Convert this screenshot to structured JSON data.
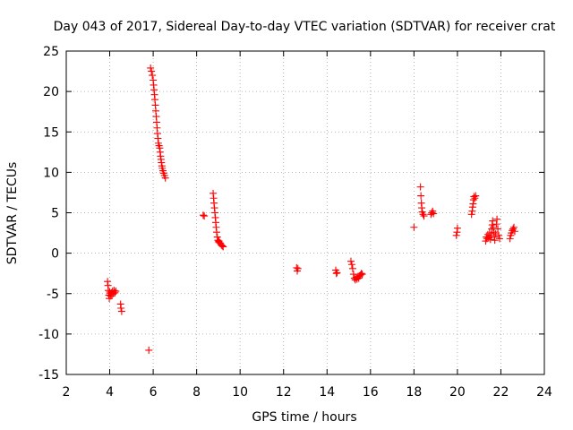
{
  "chart_data": {
    "type": "scatter",
    "title": "Day 043 of 2017, Sidereal Day-to-day VTEC variation (SDTVAR) for receiver crat",
    "xlabel": "GPS time / hours",
    "ylabel": "SDTVAR / TECUs",
    "xlim": [
      2,
      24
    ],
    "ylim": [
      -15,
      25
    ],
    "xticks": [
      "2",
      "4",
      "6",
      "8",
      "10",
      "12",
      "14",
      "16",
      "18",
      "20",
      "22",
      "24"
    ],
    "yticks": [
      "25",
      "20",
      "15",
      "10",
      "5",
      "0",
      "-5",
      "-10",
      "-15"
    ],
    "grid": true,
    "marker": "plus",
    "series": [
      {
        "name": "SDTVAR",
        "color": "#ff0000",
        "points": [
          [
            3.9,
            -3.5
          ],
          [
            3.92,
            -4.0
          ],
          [
            3.94,
            -4.6
          ],
          [
            3.96,
            -5.2
          ],
          [
            3.98,
            -5.6
          ],
          [
            4.0,
            -4.8
          ],
          [
            4.02,
            -5.0
          ],
          [
            4.05,
            -5.3
          ],
          [
            4.08,
            -4.9
          ],
          [
            4.1,
            -5.1
          ],
          [
            4.13,
            -4.7
          ],
          [
            4.16,
            -5.0
          ],
          [
            4.2,
            -4.6
          ],
          [
            4.24,
            -4.9
          ],
          [
            4.28,
            -4.7
          ],
          [
            4.5,
            -6.3
          ],
          [
            4.52,
            -6.8
          ],
          [
            4.55,
            -7.2
          ],
          [
            5.8,
            -12.0
          ],
          [
            5.88,
            22.9
          ],
          [
            5.92,
            22.5
          ],
          [
            5.96,
            22.0
          ],
          [
            6.0,
            21.4
          ],
          [
            6.02,
            20.8
          ],
          [
            6.04,
            20.2
          ],
          [
            6.06,
            19.6
          ],
          [
            6.08,
            19.0
          ],
          [
            6.1,
            18.3
          ],
          [
            6.12,
            17.6
          ],
          [
            6.14,
            16.9
          ],
          [
            6.16,
            16.2
          ],
          [
            6.18,
            15.5
          ],
          [
            6.2,
            14.8
          ],
          [
            6.22,
            14.2
          ],
          [
            6.24,
            13.6
          ],
          [
            6.27,
            13.3
          ],
          [
            6.3,
            13.0
          ],
          [
            6.32,
            12.5
          ],
          [
            6.34,
            12.0
          ],
          [
            6.36,
            11.6
          ],
          [
            6.38,
            11.2
          ],
          [
            6.4,
            10.8
          ],
          [
            6.42,
            10.5
          ],
          [
            6.45,
            10.2
          ],
          [
            6.48,
            9.9
          ],
          [
            6.52,
            9.6
          ],
          [
            6.56,
            9.3
          ],
          [
            8.3,
            4.7
          ],
          [
            8.35,
            4.6
          ],
          [
            8.76,
            7.4
          ],
          [
            8.78,
            6.8
          ],
          [
            8.8,
            6.2
          ],
          [
            8.82,
            5.6
          ],
          [
            8.84,
            5.0
          ],
          [
            8.86,
            4.4
          ],
          [
            8.88,
            3.8
          ],
          [
            8.9,
            3.2
          ],
          [
            8.92,
            2.6
          ],
          [
            8.95,
            2.0
          ],
          [
            8.98,
            1.6
          ],
          [
            9.0,
            1.4
          ],
          [
            9.03,
            1.5
          ],
          [
            9.06,
            1.3
          ],
          [
            9.1,
            1.2
          ],
          [
            9.14,
            1.0
          ],
          [
            9.18,
            0.9
          ],
          [
            9.22,
            0.8
          ],
          [
            12.6,
            -1.8
          ],
          [
            12.63,
            -2.2
          ],
          [
            12.66,
            -1.9
          ],
          [
            14.4,
            -2.1
          ],
          [
            14.43,
            -2.5
          ],
          [
            14.46,
            -2.4
          ],
          [
            15.1,
            -1.0
          ],
          [
            15.14,
            -1.4
          ],
          [
            15.18,
            -1.9
          ],
          [
            15.22,
            -2.6
          ],
          [
            15.26,
            -3.1
          ],
          [
            15.3,
            -3.3
          ],
          [
            15.34,
            -3.0
          ],
          [
            15.38,
            -3.2
          ],
          [
            15.42,
            -2.9
          ],
          [
            15.46,
            -3.1
          ],
          [
            15.5,
            -2.8
          ],
          [
            15.54,
            -2.7
          ],
          [
            15.58,
            -2.5
          ],
          [
            15.62,
            -2.6
          ],
          [
            18.0,
            3.2
          ],
          [
            18.3,
            8.2
          ],
          [
            18.32,
            7.1
          ],
          [
            18.34,
            6.2
          ],
          [
            18.36,
            5.6
          ],
          [
            18.38,
            5.1
          ],
          [
            18.42,
            4.8
          ],
          [
            18.46,
            4.6
          ],
          [
            18.78,
            4.8
          ],
          [
            18.82,
            5.0
          ],
          [
            18.86,
            5.2
          ],
          [
            18.9,
            4.9
          ],
          [
            19.95,
            2.2
          ],
          [
            19.98,
            2.6
          ],
          [
            20.0,
            3.1
          ],
          [
            20.65,
            4.8
          ],
          [
            20.68,
            5.2
          ],
          [
            20.7,
            5.7
          ],
          [
            20.72,
            6.1
          ],
          [
            20.74,
            6.6
          ],
          [
            20.76,
            7.0
          ],
          [
            20.8,
            6.8
          ],
          [
            20.84,
            7.1
          ],
          [
            21.3,
            1.5
          ],
          [
            21.33,
            2.0
          ],
          [
            21.36,
            1.8
          ],
          [
            21.4,
            2.3
          ],
          [
            21.44,
            1.9
          ],
          [
            21.48,
            2.5
          ],
          [
            21.52,
            1.7
          ],
          [
            21.55,
            2.2
          ],
          [
            21.58,
            3.0
          ],
          [
            21.6,
            3.5
          ],
          [
            21.62,
            4.0
          ],
          [
            21.65,
            3.2
          ],
          [
            21.68,
            2.6
          ],
          [
            21.7,
            2.0
          ],
          [
            21.72,
            1.6
          ],
          [
            21.76,
            2.4
          ],
          [
            21.8,
            3.6
          ],
          [
            21.82,
            4.2
          ],
          [
            21.86,
            3.0
          ],
          [
            21.9,
            2.2
          ],
          [
            21.94,
            1.8
          ],
          [
            22.42,
            1.8
          ],
          [
            22.45,
            2.2
          ],
          [
            22.48,
            2.5
          ],
          [
            22.52,
            2.8
          ],
          [
            22.56,
            3.0
          ],
          [
            22.6,
            3.2
          ],
          [
            22.64,
            2.7
          ]
        ]
      }
    ]
  }
}
